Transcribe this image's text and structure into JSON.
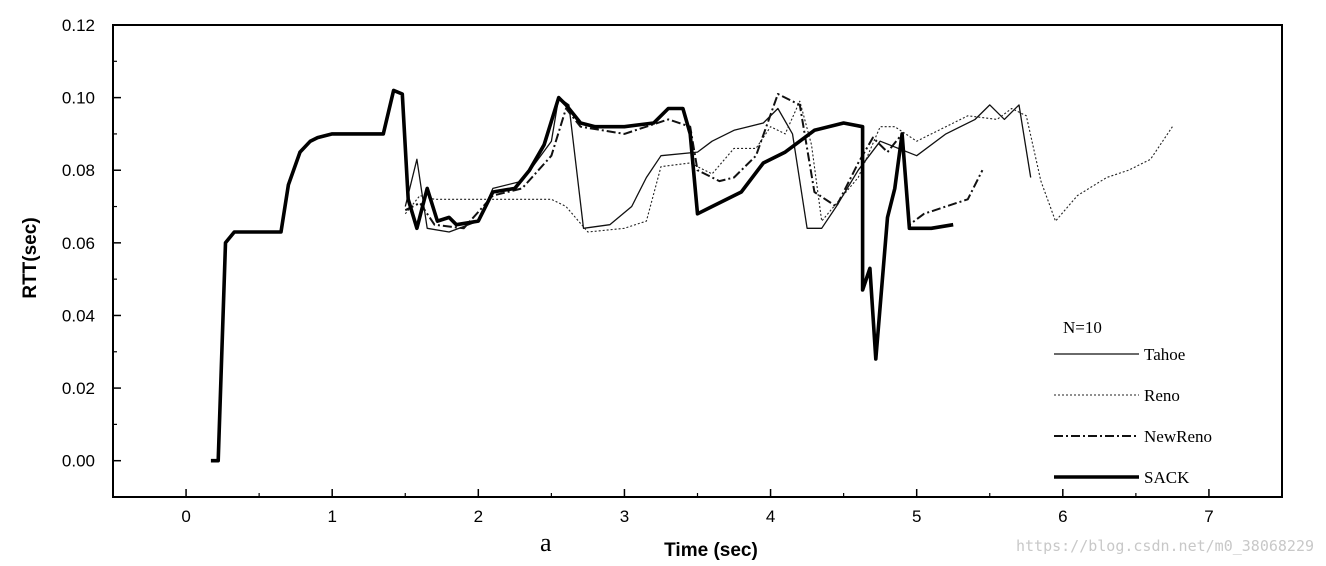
{
  "chart_data": {
    "type": "line",
    "xlabel": "Time (sec)",
    "ylabel": "RTT(sec)",
    "xlim": [
      -0.5,
      7.5
    ],
    "ylim": [
      -0.01,
      0.12
    ],
    "x_ticks": [
      0,
      1,
      2,
      3,
      4,
      5,
      6,
      7
    ],
    "y_ticks": [
      0.0,
      0.02,
      0.04,
      0.06,
      0.08,
      0.1,
      0.12
    ],
    "x_tick_labels": [
      "0",
      "1",
      "2",
      "3",
      "4",
      "5",
      "6",
      "7"
    ],
    "y_tick_labels": [
      "0.00",
      "0.02",
      "0.04",
      "0.06",
      "0.08",
      "0.10",
      "0.12"
    ],
    "grid": false,
    "legend_title": "N=10",
    "legend_position": "bottom-right",
    "panel_label": "a",
    "series": [
      {
        "name": "Tahoe",
        "style": "solid-thin",
        "points": [
          [
            1.5,
            0.07
          ],
          [
            1.58,
            0.083
          ],
          [
            1.65,
            0.064
          ],
          [
            1.8,
            0.063
          ],
          [
            2.0,
            0.066
          ],
          [
            2.1,
            0.075
          ],
          [
            2.3,
            0.077
          ],
          [
            2.5,
            0.088
          ],
          [
            2.55,
            0.1
          ],
          [
            2.62,
            0.098
          ],
          [
            2.72,
            0.064
          ],
          [
            2.9,
            0.065
          ],
          [
            3.05,
            0.07
          ],
          [
            3.15,
            0.078
          ],
          [
            3.25,
            0.084
          ],
          [
            3.5,
            0.085
          ],
          [
            3.6,
            0.088
          ],
          [
            3.75,
            0.091
          ],
          [
            3.95,
            0.093
          ],
          [
            4.05,
            0.097
          ],
          [
            4.15,
            0.09
          ],
          [
            4.25,
            0.064
          ],
          [
            4.35,
            0.064
          ],
          [
            4.45,
            0.07
          ],
          [
            4.6,
            0.08
          ],
          [
            4.75,
            0.088
          ],
          [
            5.0,
            0.084
          ],
          [
            5.2,
            0.09
          ],
          [
            5.4,
            0.094
          ],
          [
            5.5,
            0.098
          ],
          [
            5.6,
            0.094
          ],
          [
            5.7,
            0.098
          ],
          [
            5.78,
            0.078
          ]
        ]
      },
      {
        "name": "Reno",
        "style": "dotted",
        "points": [
          [
            1.5,
            0.068
          ],
          [
            1.6,
            0.073
          ],
          [
            1.7,
            0.072
          ],
          [
            2.2,
            0.072
          ],
          [
            2.5,
            0.072
          ],
          [
            2.6,
            0.07
          ],
          [
            2.75,
            0.063
          ],
          [
            3.0,
            0.064
          ],
          [
            3.15,
            0.066
          ],
          [
            3.25,
            0.081
          ],
          [
            3.45,
            0.082
          ],
          [
            3.6,
            0.079
          ],
          [
            3.75,
            0.086
          ],
          [
            3.9,
            0.086
          ],
          [
            4.0,
            0.092
          ],
          [
            4.1,
            0.09
          ],
          [
            4.2,
            0.099
          ],
          [
            4.28,
            0.087
          ],
          [
            4.35,
            0.066
          ],
          [
            4.6,
            0.078
          ],
          [
            4.75,
            0.092
          ],
          [
            4.85,
            0.092
          ],
          [
            5.0,
            0.088
          ],
          [
            5.2,
            0.092
          ],
          [
            5.35,
            0.095
          ],
          [
            5.55,
            0.094
          ],
          [
            5.65,
            0.097
          ],
          [
            5.75,
            0.095
          ],
          [
            5.85,
            0.077
          ],
          [
            5.95,
            0.066
          ],
          [
            6.1,
            0.073
          ],
          [
            6.3,
            0.078
          ],
          [
            6.45,
            0.08
          ],
          [
            6.6,
            0.083
          ],
          [
            6.75,
            0.092
          ]
        ]
      },
      {
        "name": "NewReno",
        "style": "dash-dot",
        "points": [
          [
            1.5,
            0.069
          ],
          [
            1.6,
            0.071
          ],
          [
            1.7,
            0.065
          ],
          [
            1.9,
            0.064
          ],
          [
            2.1,
            0.073
          ],
          [
            2.3,
            0.075
          ],
          [
            2.5,
            0.084
          ],
          [
            2.6,
            0.097
          ],
          [
            2.7,
            0.092
          ],
          [
            3.0,
            0.09
          ],
          [
            3.3,
            0.094
          ],
          [
            3.45,
            0.092
          ],
          [
            3.5,
            0.08
          ],
          [
            3.65,
            0.077
          ],
          [
            3.75,
            0.078
          ],
          [
            3.9,
            0.084
          ],
          [
            4.05,
            0.101
          ],
          [
            4.2,
            0.098
          ],
          [
            4.3,
            0.074
          ],
          [
            4.45,
            0.07
          ],
          [
            4.6,
            0.082
          ],
          [
            4.7,
            0.089
          ],
          [
            4.8,
            0.085
          ],
          [
            4.9,
            0.09
          ],
          [
            4.95,
            0.065
          ],
          [
            5.05,
            0.068
          ],
          [
            5.2,
            0.07
          ],
          [
            5.35,
            0.072
          ],
          [
            5.45,
            0.08
          ]
        ]
      },
      {
        "name": "SACK",
        "style": "thick",
        "points": [
          [
            0.17,
            0.0
          ],
          [
            0.22,
            0.0
          ],
          [
            0.27,
            0.06
          ],
          [
            0.33,
            0.063
          ],
          [
            0.5,
            0.063
          ],
          [
            0.65,
            0.063
          ],
          [
            0.7,
            0.076
          ],
          [
            0.78,
            0.085
          ],
          [
            0.85,
            0.088
          ],
          [
            0.9,
            0.089
          ],
          [
            1.0,
            0.09
          ],
          [
            1.2,
            0.09
          ],
          [
            1.35,
            0.09
          ],
          [
            1.42,
            0.102
          ],
          [
            1.48,
            0.101
          ],
          [
            1.52,
            0.072
          ],
          [
            1.58,
            0.064
          ],
          [
            1.65,
            0.075
          ],
          [
            1.72,
            0.066
          ],
          [
            1.8,
            0.067
          ],
          [
            1.85,
            0.065
          ],
          [
            2.0,
            0.066
          ],
          [
            2.1,
            0.074
          ],
          [
            2.25,
            0.075
          ],
          [
            2.35,
            0.08
          ],
          [
            2.45,
            0.087
          ],
          [
            2.55,
            0.1
          ],
          [
            2.6,
            0.098
          ],
          [
            2.7,
            0.093
          ],
          [
            2.8,
            0.092
          ],
          [
            3.0,
            0.092
          ],
          [
            3.2,
            0.093
          ],
          [
            3.3,
            0.097
          ],
          [
            3.4,
            0.097
          ],
          [
            3.45,
            0.09
          ],
          [
            3.5,
            0.068
          ],
          [
            3.6,
            0.07
          ],
          [
            3.8,
            0.074
          ],
          [
            3.95,
            0.082
          ],
          [
            4.1,
            0.085
          ],
          [
            4.3,
            0.091
          ],
          [
            4.5,
            0.093
          ],
          [
            4.63,
            0.092
          ],
          [
            4.63,
            0.047
          ],
          [
            4.68,
            0.053
          ],
          [
            4.72,
            0.028
          ],
          [
            4.8,
            0.067
          ],
          [
            4.85,
            0.075
          ],
          [
            4.9,
            0.09
          ],
          [
            4.95,
            0.064
          ],
          [
            5.1,
            0.064
          ],
          [
            5.25,
            0.065
          ]
        ]
      }
    ]
  },
  "watermark": "https://blog.csdn.net/m0_38068229"
}
